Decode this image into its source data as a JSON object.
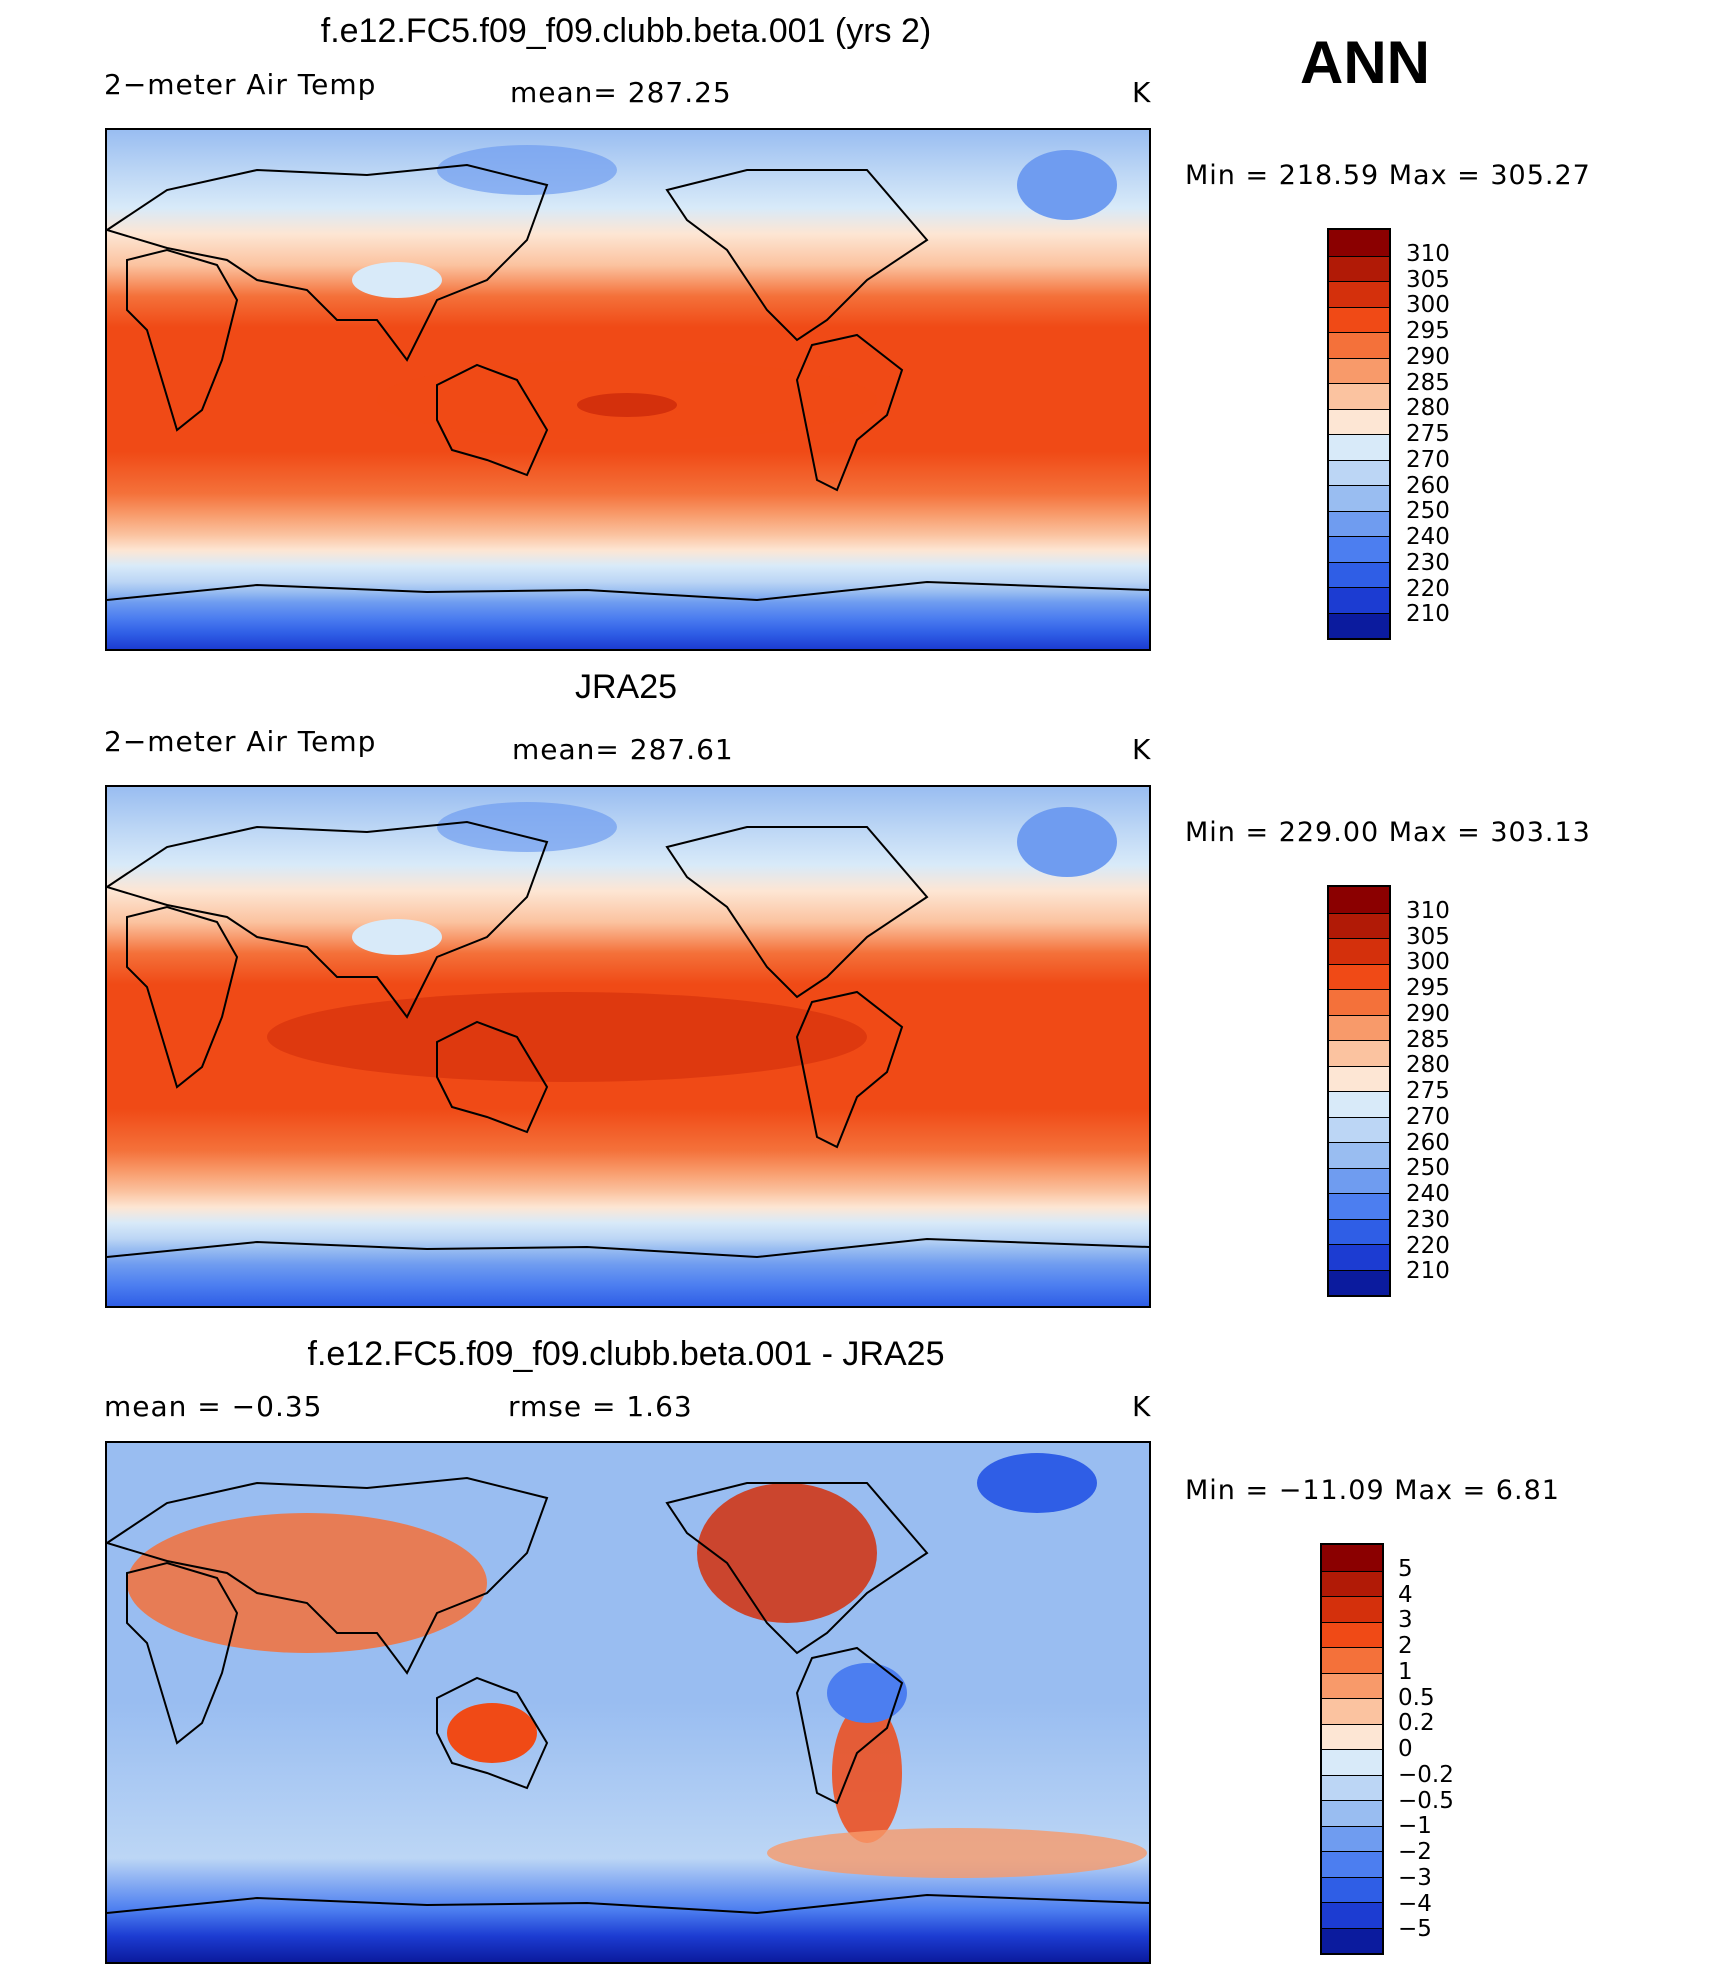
{
  "season": "ANN",
  "panels": [
    {
      "title": "f.e12.FC5.f09_f09.clubb.beta.001 (yrs 2)",
      "left_label": "2−meter Air Temp",
      "center_label": "mean=  287.25",
      "units": "K",
      "minmax": "Min  =  218.59  Max  =  305.27",
      "map_type": "absolute"
    },
    {
      "title": "JRA25",
      "left_label": "2−meter Air Temp",
      "center_label": "mean=  287.61",
      "units": "K",
      "minmax": "Min  =  229.00  Max  =  303.13",
      "map_type": "absolute"
    },
    {
      "title": "f.e12.FC5.f09_f09.clubb.beta.001 - JRA25",
      "left_label": "mean  =     −0.35",
      "center_label": "rmse  =      1.63",
      "units": "K",
      "minmax": "Min  =  −11.09  Max  =       6.81",
      "map_type": "difference"
    }
  ],
  "colorbar_abs": {
    "labels": [
      "310",
      "305",
      "300",
      "295",
      "290",
      "285",
      "280",
      "275",
      "270",
      "260",
      "250",
      "240",
      "230",
      "220",
      "210"
    ],
    "colors": [
      "#8b0000",
      "#b11a06",
      "#d4300c",
      "#f04a16",
      "#f4713a",
      "#f89a6a",
      "#fbc3a0",
      "#fde6d4",
      "#d8eaf9",
      "#bcd6f5",
      "#99bdf1",
      "#6f9cf0",
      "#4c7ef0",
      "#2f5ee6",
      "#1c3cd2",
      "#0b1b9e"
    ]
  },
  "colorbar_diff": {
    "labels": [
      "5",
      "4",
      "3",
      "2",
      "1",
      "0.5",
      "0.2",
      "0",
      "−0.2",
      "−0.5",
      "−1",
      "−2",
      "−3",
      "−4",
      "−5"
    ],
    "colors": [
      "#8b0000",
      "#b11a06",
      "#d4300c",
      "#f04a16",
      "#f4713a",
      "#f89a6a",
      "#fbc3a0",
      "#fde6d4",
      "#d8eaf9",
      "#bcd6f5",
      "#99bdf1",
      "#6f9cf0",
      "#4c7ef0",
      "#2f5ee6",
      "#1c3cd2",
      "#0b1b9e"
    ]
  }
}
